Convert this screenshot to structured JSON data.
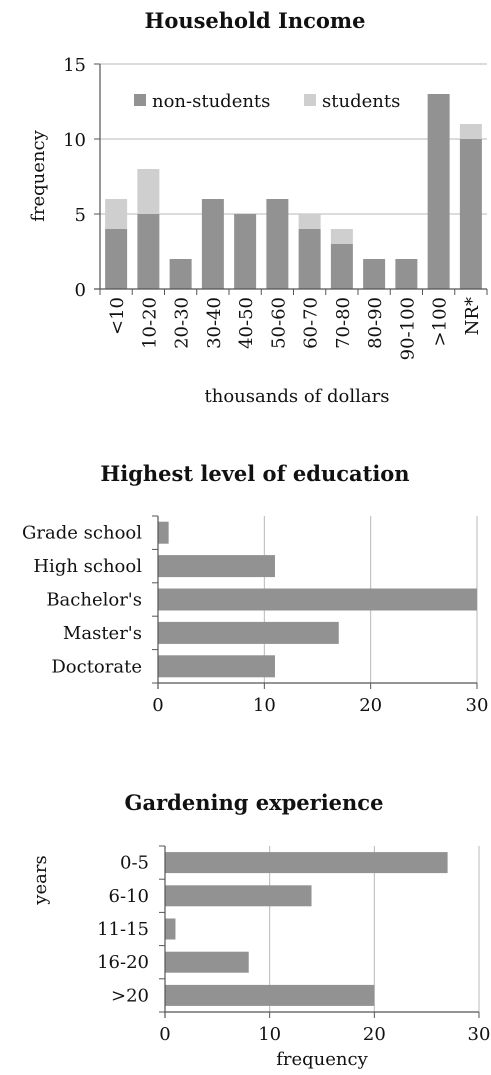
{
  "colors": {
    "non_students": "#929292",
    "students": "#cfcfcf",
    "gridline": "#b8b8b8",
    "axis": "#555555"
  },
  "chart_data": [
    {
      "type": "bar",
      "stacked": true,
      "orientation": "vertical",
      "title": "Household Income",
      "xlabel": "thousands of dollars",
      "ylabel": "frequency",
      "categories": [
        "<10",
        "10-20",
        "20-30",
        "30-40",
        "40-50",
        "50-60",
        "60-70",
        "70-80",
        "80-90",
        "90-100",
        ">100",
        "NR*"
      ],
      "series": [
        {
          "name": "non-students",
          "color": "#929292",
          "values": [
            4,
            5,
            2,
            6,
            5,
            6,
            4,
            3,
            2,
            2,
            13,
            10
          ]
        },
        {
          "name": "students",
          "color": "#cfcfcf",
          "values": [
            2,
            3,
            0,
            0,
            0,
            0,
            1,
            1,
            0,
            0,
            0,
            1
          ]
        }
      ],
      "ylim": [
        0,
        15
      ],
      "yticks": [
        0,
        5,
        10,
        15
      ],
      "grid": true,
      "legend": "top"
    },
    {
      "type": "bar",
      "orientation": "horizontal",
      "title": "Highest level of education",
      "xlabel": "",
      "ylabel": "",
      "categories": [
        "Grade school",
        "High school",
        "Bachelor's",
        "Master's",
        "Doctorate"
      ],
      "values": [
        1,
        11,
        30,
        17,
        11
      ],
      "color": "#929292",
      "xlim": [
        0,
        30
      ],
      "xticks": [
        0,
        10,
        20,
        30
      ],
      "grid": true
    },
    {
      "type": "bar",
      "orientation": "horizontal",
      "title": "Gardening experience",
      "xlabel": "frequency",
      "ylabel": "years",
      "categories": [
        "0-5",
        "6-10",
        "11-15",
        "16-20",
        ">20"
      ],
      "values": [
        27,
        14,
        1,
        8,
        20
      ],
      "color": "#929292",
      "xlim": [
        0,
        30
      ],
      "xticks": [
        0,
        10,
        20,
        30
      ],
      "grid": true
    }
  ]
}
